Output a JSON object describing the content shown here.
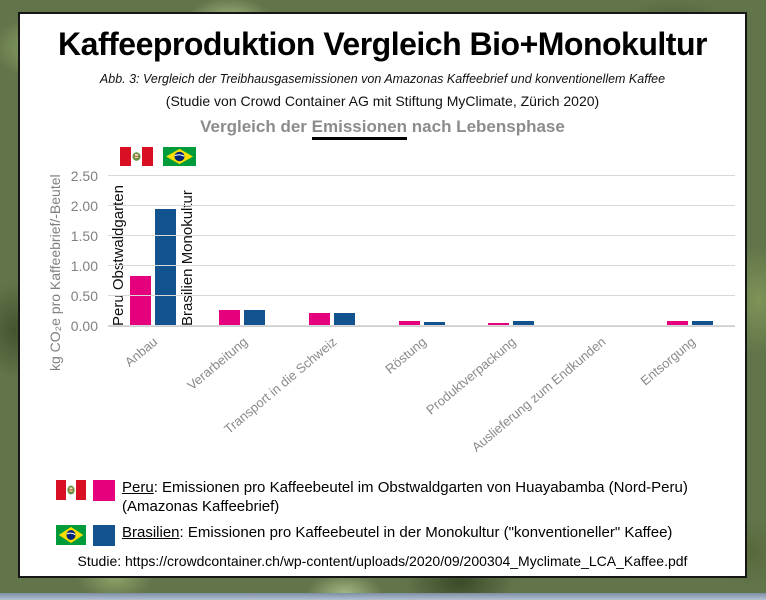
{
  "page": {
    "title": "Kaffeeproduktion Vergleich Bio+Monokultur",
    "caption": "Abb. 3: Vergleich der Treibhausgasemissionen von Amazonas Kaffeebrief und konventionellem Kaffee",
    "source_line": "(Studie von Crowd Container AG mit Stiftung MyClimate, Zürich 2020)",
    "studie_line": "Studie: https://crowdcontainer.ch/wp-content/uploads/2020/09/200304_Myclimate_LCA_Kaffee.pdf"
  },
  "chart_heading": {
    "pre": "Vergleich der ",
    "underlined": "Emissionen",
    "post": " nach Lebensphase"
  },
  "chart_data": {
    "type": "bar",
    "title": "Vergleich der Emissionen nach Lebensphase",
    "ylabel": "kg CO₂e pro Kaffeebrief/-Beutel",
    "xlabel": "",
    "ylim": [
      0,
      2.78
    ],
    "yticks": [
      0.0,
      0.5,
      1.0,
      1.5,
      2.0,
      2.5
    ],
    "ytick_labels": [
      "0.00",
      "0.50",
      "1.00",
      "1.50",
      "2.00",
      "2.50"
    ],
    "grid": true,
    "legend_position": "bottom",
    "categories": [
      "Anbau",
      "Verarbeitung",
      "Transport in die Schweiz",
      "Röstung",
      "Produktverpackung",
      "Auslieferung zum Endkunden",
      "Entsorgung"
    ],
    "series": [
      {
        "name": "Peru Obstwaldgarten",
        "color": "#E5007D",
        "values": [
          0.83,
          0.26,
          0.22,
          0.08,
          0.05,
          0.02,
          0.08
        ]
      },
      {
        "name": "Brasilien Monokultur",
        "color": "#11528F",
        "values": [
          1.95,
          0.26,
          0.21,
          0.07,
          0.09,
          0.02,
          0.09
        ]
      }
    ],
    "bar_annotations": [
      "Peru Obstwaldgarten",
      "Brasilien Monokultur"
    ]
  },
  "legend": {
    "items": [
      {
        "flag": "peru-flag",
        "swatch": "#E5007D",
        "country": "Peru",
        "text": ": Emissionen pro Kaffeebeutel im Obstwaldgarten von Huayabamba (Nord-Peru)",
        "text2": "(Amazonas Kaffeebrief)"
      },
      {
        "flag": "brazil-flag",
        "swatch": "#11528F",
        "country": "Brasilien",
        "text": ": Emissionen pro Kaffeebeutel in der Monokultur (\"konventioneller\" Kaffee)",
        "text2": ""
      }
    ]
  },
  "colors": {
    "peru_bar": "#E5007D",
    "brazil_bar": "#11528F",
    "heading_gray": "#8c8c8c",
    "axis_gray": "#808080",
    "gridline": "#d9d9d9"
  }
}
